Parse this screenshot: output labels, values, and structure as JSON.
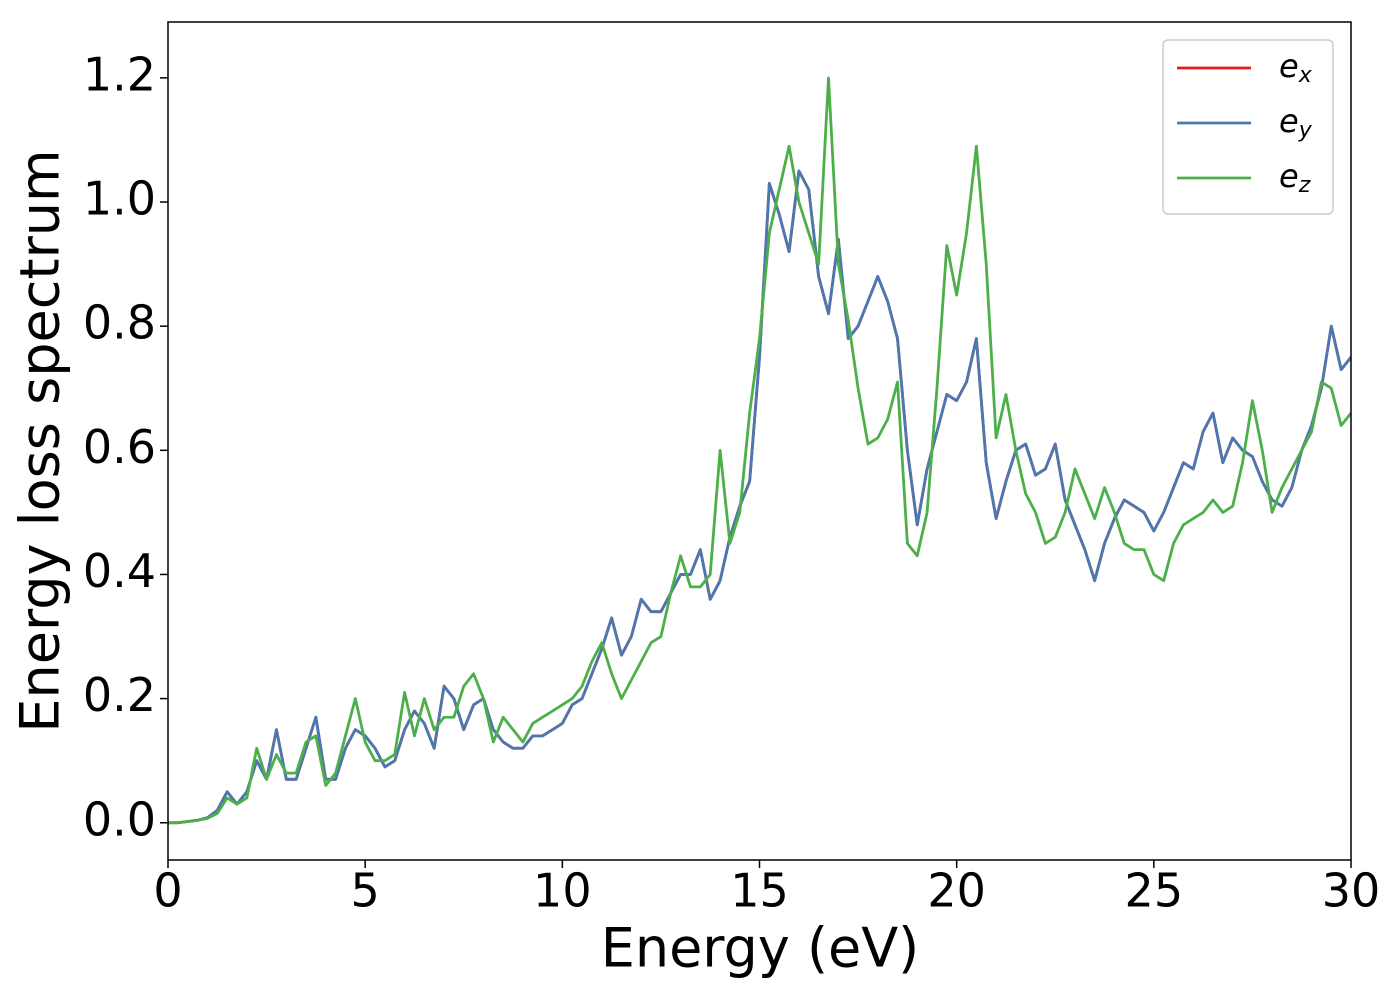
{
  "chart_data": {
    "type": "line",
    "xlabel": "Energy (eV)",
    "ylabel": "Energy loss spectrum",
    "xlim": [
      0,
      30
    ],
    "xticks": [
      0,
      5,
      10,
      15,
      20,
      25,
      30
    ],
    "ylim": [
      -0.06,
      1.29
    ],
    "yticks": [
      {
        "value": 0,
        "label": "0.0"
      },
      0.2,
      0.4,
      0.6,
      0.8,
      {
        "value": 1,
        "label": "1.0"
      },
      1.2
    ],
    "legend": "upper right",
    "x": [
      0,
      0.25,
      0.5,
      0.75,
      1,
      1.25,
      1.5,
      1.75,
      2,
      2.25,
      2.5,
      2.75,
      3,
      3.25,
      3.5,
      3.75,
      4,
      4.25,
      4.5,
      4.75,
      5,
      5.25,
      5.5,
      5.75,
      6,
      6.25,
      6.5,
      6.75,
      7,
      7.25,
      7.5,
      7.75,
      8,
      8.25,
      8.5,
      8.75,
      9,
      9.25,
      9.5,
      9.75,
      10,
      10.25,
      10.5,
      10.75,
      11,
      11.25,
      11.5,
      11.75,
      12,
      12.25,
      12.5,
      12.75,
      13,
      13.25,
      13.5,
      13.75,
      14,
      14.25,
      14.5,
      14.75,
      15,
      15.25,
      15.5,
      15.75,
      16,
      16.25,
      16.5,
      16.75,
      17,
      17.25,
      17.5,
      17.75,
      18,
      18.25,
      18.5,
      18.75,
      19,
      19.25,
      19.5,
      19.75,
      20,
      20.25,
      20.5,
      20.75,
      21,
      21.25,
      21.5,
      21.75,
      22,
      22.25,
      22.5,
      22.75,
      23,
      23.25,
      23.5,
      23.75,
      24,
      24.25,
      24.5,
      24.75,
      25,
      25.25,
      25.5,
      25.75,
      26,
      26.25,
      26.5,
      26.75,
      27,
      27.25,
      27.5,
      27.75,
      28,
      28.25,
      28.5,
      28.75,
      29,
      29.25,
      29.5,
      29.75,
      30
    ],
    "series": [
      {
        "name": "e_x",
        "color": "#e41a1c",
        "values": [
          0,
          0,
          0.002,
          0.004,
          0.008,
          0.02,
          0.05,
          0.03,
          0.05,
          0.1,
          0.07,
          0.15,
          0.07,
          0.07,
          0.12,
          0.17,
          0.07,
          0.07,
          0.12,
          0.15,
          0.14,
          0.12,
          0.09,
          0.1,
          0.15,
          0.18,
          0.16,
          0.12,
          0.22,
          0.2,
          0.15,
          0.19,
          0.2,
          0.15,
          0.13,
          0.12,
          0.12,
          0.14,
          0.14,
          0.15,
          0.16,
          0.19,
          0.2,
          0.24,
          0.28,
          0.33,
          0.27,
          0.3,
          0.36,
          0.34,
          0.34,
          0.37,
          0.4,
          0.4,
          0.44,
          0.36,
          0.39,
          0.46,
          0.51,
          0.55,
          0.75,
          1.03,
          0.98,
          0.92,
          1.05,
          1.02,
          0.88,
          0.82,
          0.94,
          0.78,
          0.8,
          0.84,
          0.88,
          0.84,
          0.78,
          0.6,
          0.48,
          0.57,
          0.63,
          0.69,
          0.68,
          0.71,
          0.78,
          0.58,
          0.49,
          0.55,
          0.6,
          0.61,
          0.56,
          0.57,
          0.61,
          0.52,
          0.48,
          0.44,
          0.39,
          0.45,
          0.49,
          0.52,
          0.51,
          0.5,
          0.47,
          0.5,
          0.54,
          0.58,
          0.57,
          0.63,
          0.66,
          0.58,
          0.62,
          0.6,
          0.59,
          0.55,
          0.52,
          0.51,
          0.54,
          0.6,
          0.64,
          0.7,
          0.8,
          0.73,
          0.75
        ]
      },
      {
        "name": "e_y",
        "color": "#4a78b0",
        "values": [
          0,
          0,
          0.002,
          0.004,
          0.008,
          0.02,
          0.05,
          0.03,
          0.05,
          0.1,
          0.07,
          0.15,
          0.07,
          0.07,
          0.12,
          0.17,
          0.07,
          0.07,
          0.12,
          0.15,
          0.14,
          0.12,
          0.09,
          0.1,
          0.15,
          0.18,
          0.16,
          0.12,
          0.22,
          0.2,
          0.15,
          0.19,
          0.2,
          0.15,
          0.13,
          0.12,
          0.12,
          0.14,
          0.14,
          0.15,
          0.16,
          0.19,
          0.2,
          0.24,
          0.28,
          0.33,
          0.27,
          0.3,
          0.36,
          0.34,
          0.34,
          0.37,
          0.4,
          0.4,
          0.44,
          0.36,
          0.39,
          0.46,
          0.51,
          0.55,
          0.75,
          1.03,
          0.98,
          0.92,
          1.05,
          1.02,
          0.88,
          0.82,
          0.94,
          0.78,
          0.8,
          0.84,
          0.88,
          0.84,
          0.78,
          0.6,
          0.48,
          0.57,
          0.63,
          0.69,
          0.68,
          0.71,
          0.78,
          0.58,
          0.49,
          0.55,
          0.6,
          0.61,
          0.56,
          0.57,
          0.61,
          0.52,
          0.48,
          0.44,
          0.39,
          0.45,
          0.49,
          0.52,
          0.51,
          0.5,
          0.47,
          0.5,
          0.54,
          0.58,
          0.57,
          0.63,
          0.66,
          0.58,
          0.62,
          0.6,
          0.59,
          0.55,
          0.52,
          0.51,
          0.54,
          0.6,
          0.64,
          0.7,
          0.8,
          0.73,
          0.75
        ]
      },
      {
        "name": "e_z",
        "color": "#4daf4a",
        "values": [
          0,
          0,
          0.002,
          0.004,
          0.007,
          0.015,
          0.04,
          0.03,
          0.04,
          0.12,
          0.07,
          0.11,
          0.08,
          0.08,
          0.13,
          0.14,
          0.06,
          0.08,
          0.14,
          0.2,
          0.13,
          0.1,
          0.1,
          0.11,
          0.21,
          0.14,
          0.2,
          0.15,
          0.17,
          0.17,
          0.22,
          0.24,
          0.2,
          0.13,
          0.17,
          0.15,
          0.13,
          0.16,
          0.17,
          0.18,
          0.19,
          0.2,
          0.22,
          0.26,
          0.29,
          0.24,
          0.2,
          0.23,
          0.26,
          0.29,
          0.3,
          0.37,
          0.43,
          0.38,
          0.38,
          0.4,
          0.6,
          0.45,
          0.5,
          0.66,
          0.78,
          0.95,
          1.02,
          1.09,
          1.0,
          0.95,
          0.9,
          1.2,
          0.9,
          0.81,
          0.7,
          0.61,
          0.62,
          0.65,
          0.71,
          0.45,
          0.43,
          0.5,
          0.7,
          0.93,
          0.85,
          0.95,
          1.09,
          0.9,
          0.62,
          0.69,
          0.6,
          0.53,
          0.5,
          0.45,
          0.46,
          0.5,
          0.57,
          0.53,
          0.49,
          0.54,
          0.5,
          0.45,
          0.44,
          0.44,
          0.4,
          0.39,
          0.45,
          0.48,
          0.49,
          0.5,
          0.52,
          0.5,
          0.51,
          0.58,
          0.68,
          0.6,
          0.5,
          0.54,
          0.57,
          0.6,
          0.63,
          0.71,
          0.7,
          0.64,
          0.66
        ]
      }
    ]
  }
}
